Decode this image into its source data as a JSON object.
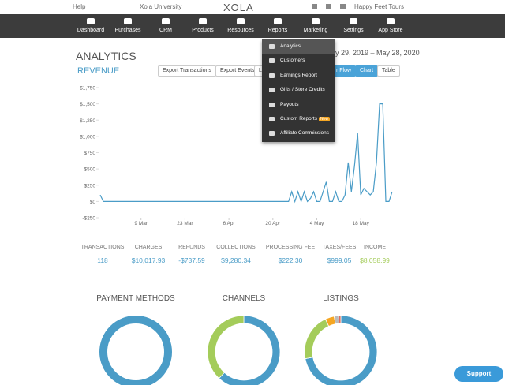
{
  "header": {
    "help": "Help",
    "university": "Xola University",
    "logo": "XOLA",
    "account": "Happy Feet Tours"
  },
  "nav": [
    "Dashboard",
    "Purchases",
    "CRM",
    "Products",
    "Resources",
    "Reports",
    "Marketing",
    "Settings",
    "App Store"
  ],
  "reports_menu": {
    "items": [
      "Analytics",
      "Customers",
      "Earnings Report",
      "Gifts / Store Credits",
      "Payouts",
      "Custom Reports",
      "Affiliate Commissions"
    ],
    "badge": "New"
  },
  "page": {
    "title": "ANALYTICS",
    "subtitle": "REVENUE",
    "buttons": [
      "Export Transactions",
      "Export Events"
    ],
    "partial_button": "Li",
    "date_range": "y 29, 2019 – May 28, 2020",
    "view_buttons": [
      "r Flow",
      "Chart",
      "Table"
    ]
  },
  "chart_data": [
    {
      "type": "line",
      "color": "#4a9cc7",
      "x": [
        "25 Feb",
        "26 Feb",
        "25 Apr",
        "26 Apr",
        "27 Apr",
        "28 Apr",
        "29 Apr",
        "30 Apr",
        "1 May",
        "2 May",
        "3 May",
        "4 May",
        "5 May",
        "7 May",
        "8 May",
        "9 May",
        "10 May",
        "11 May",
        "12 May",
        "13 May",
        "14 May",
        "15 May",
        "16 May",
        "17 May",
        "18 May",
        "19 May",
        "20 May",
        "21 May",
        "22 May",
        "23 May",
        "24 May",
        "25 May",
        "26 May",
        "27 May",
        "28 May"
      ],
      "values": [
        100,
        0,
        0,
        150,
        0,
        150,
        0,
        150,
        0,
        50,
        150,
        0,
        0,
        300,
        0,
        0,
        150,
        0,
        0,
        100,
        600,
        150,
        550,
        1050,
        100,
        200,
        150,
        100,
        150,
        600,
        1500,
        1500,
        0,
        0,
        150
      ],
      "xlim": [
        "25 Feb",
        "28 May"
      ],
      "xticks": [
        "9 Mar",
        "23 Mar",
        "6 Apr",
        "20 Apr",
        "4 May",
        "18 May"
      ],
      "ylim": [
        -250,
        1750
      ],
      "yticks": [
        {
          "value": -250,
          "label": "-$250"
        },
        {
          "value": 0,
          "label": "$0"
        },
        {
          "value": 250,
          "label": "$250"
        },
        {
          "value": 500,
          "label": "$500"
        },
        {
          "value": 750,
          "label": "$750"
        },
        {
          "value": 1000,
          "label": "$1,000"
        },
        {
          "value": 1250,
          "label": "$1,250"
        },
        {
          "value": 1500,
          "label": "$1,500"
        },
        {
          "value": 1750,
          "label": "$1,750"
        }
      ]
    },
    {
      "type": "pie",
      "title": "PAYMENT METHODS",
      "values": [
        100
      ],
      "colors": [
        "#4a9cc7"
      ]
    },
    {
      "type": "pie",
      "title": "CHANNELS",
      "values": [
        62,
        38
      ],
      "colors": [
        "#4a9cc7",
        "#a4cc5a"
      ]
    },
    {
      "type": "pie",
      "title": "LISTINGS",
      "values": [
        72,
        21,
        4,
        2,
        1
      ],
      "colors": [
        "#4a9cc7",
        "#a4cc5a",
        "#f5a623",
        "#bbbbbb",
        "#e06c5a"
      ]
    }
  ],
  "stats": {
    "labels": [
      "TRANSACTIONS",
      "CHARGES",
      "REFUNDS",
      "COLLECTIONS",
      "PROCESSING FEE",
      "TAXES/FEES",
      "INCOME"
    ],
    "values": [
      "118",
      "$10,017.93",
      "-$737.59",
      "$9,280.34",
      "$222.30",
      "$999.05",
      "$8,058.99"
    ]
  },
  "support": "Support"
}
